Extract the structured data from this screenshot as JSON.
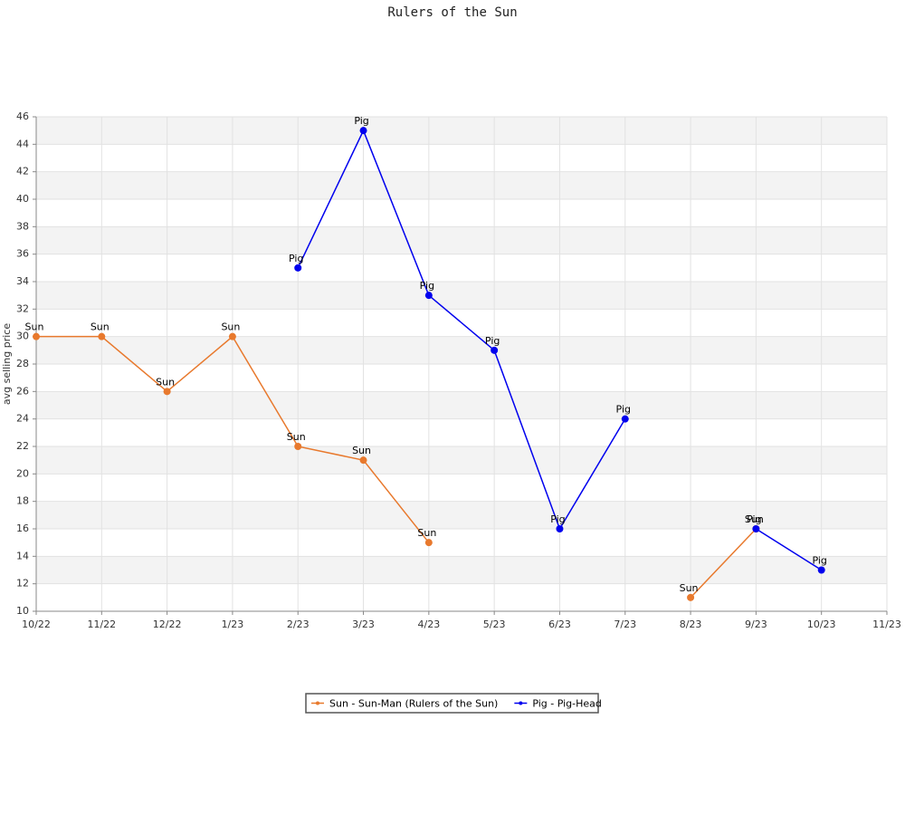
{
  "chart_data": {
    "type": "line",
    "title": "Rulers of the Sun",
    "y_label": "avg selling price",
    "categories": [
      "10/22",
      "11/22",
      "12/22",
      "1/23",
      "2/23",
      "3/23",
      "4/23",
      "5/23",
      "6/23",
      "7/23",
      "8/23",
      "9/23",
      "10/23",
      "11/23"
    ],
    "series": [
      {
        "name": "Sun - Sun-Man (Rulers of the Sun)",
        "point_label": "Sun",
        "color": "#e8792d",
        "values": [
          30,
          30,
          26,
          30,
          22,
          21,
          15,
          null,
          null,
          null,
          11,
          16,
          null,
          null
        ]
      },
      {
        "name": "Pig - Pig-Head",
        "point_label": "Pig",
        "color": "#0000ee",
        "values": [
          null,
          null,
          null,
          null,
          35,
          45,
          33,
          29,
          16,
          24,
          null,
          16,
          13,
          null
        ]
      }
    ],
    "ylim": [
      10,
      46
    ],
    "yticks": [
      10,
      12,
      14,
      16,
      18,
      20,
      22,
      24,
      26,
      28,
      30,
      32,
      34,
      36,
      38,
      40,
      42,
      44,
      46
    ],
    "grid": true,
    "legend": "bottom"
  }
}
